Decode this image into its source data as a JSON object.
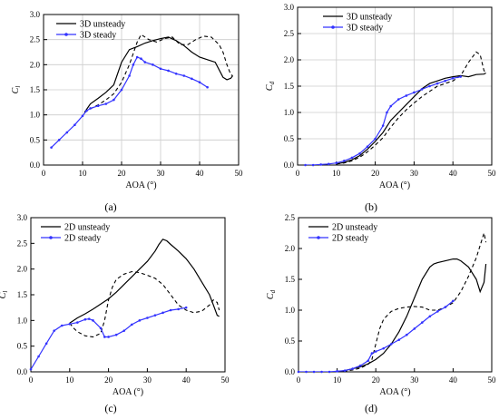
{
  "chart_data": [
    {
      "type": "line",
      "panel_label": "(a)",
      "ylabel": "C",
      "ylabel_sub": "l",
      "xlabel": "AOA (°)",
      "xlim": [
        0,
        50
      ],
      "ylim": [
        0,
        3.0
      ],
      "xticks": [
        "0",
        "10",
        "20",
        "30",
        "40",
        "50"
      ],
      "yticks": [
        "0.0",
        "0.5",
        "1.0",
        "1.5",
        "2.0",
        "2.5",
        "3.0"
      ],
      "grid": true,
      "legend_position": "top-left",
      "series": [
        {
          "name": "3D unsteady",
          "color": "#000000",
          "style": "solid",
          "marker": "none",
          "x": [
            10.5,
            12,
            14,
            16,
            18,
            20,
            22,
            24,
            26,
            28,
            30,
            32,
            34,
            36,
            38,
            40,
            42,
            44,
            46,
            47,
            48,
            48.5
          ],
          "y": [
            1.05,
            1.22,
            1.33,
            1.45,
            1.6,
            2.05,
            2.3,
            2.36,
            2.43,
            2.48,
            2.52,
            2.55,
            2.48,
            2.38,
            2.25,
            2.15,
            2.1,
            2.05,
            1.75,
            1.7,
            1.73,
            1.78
          ]
        },
        {
          "name": "",
          "color": "#000000",
          "style": "dashed",
          "marker": "none",
          "x": [
            10.5,
            12,
            14,
            16,
            18,
            20,
            22,
            24,
            25,
            27,
            29,
            31,
            33,
            35,
            37,
            39,
            41,
            43,
            45,
            46,
            47,
            48,
            48.5
          ],
          "y": [
            1.05,
            1.12,
            1.2,
            1.3,
            1.42,
            1.65,
            2.0,
            2.45,
            2.6,
            2.5,
            2.45,
            2.52,
            2.55,
            2.4,
            2.4,
            2.5,
            2.57,
            2.55,
            2.4,
            2.25,
            2.0,
            1.8,
            1.78
          ]
        },
        {
          "name": "3D steady",
          "color": "#3333ff",
          "style": "solid",
          "marker": "dot",
          "x": [
            2,
            4,
            6,
            8,
            10,
            11,
            12,
            14,
            16,
            18,
            20,
            22,
            23,
            24,
            25,
            26,
            28,
            30,
            32,
            34,
            36,
            38,
            40,
            42
          ],
          "y": [
            0.35,
            0.5,
            0.65,
            0.8,
            0.98,
            1.08,
            1.13,
            1.18,
            1.22,
            1.3,
            1.5,
            1.78,
            2.0,
            2.15,
            2.12,
            2.05,
            2.0,
            1.92,
            1.88,
            1.82,
            1.78,
            1.72,
            1.65,
            1.55
          ]
        }
      ]
    },
    {
      "type": "line",
      "panel_label": "(b)",
      "ylabel": "C",
      "ylabel_sub": "d",
      "xlabel": "AOA (°)",
      "xlim": [
        0,
        50
      ],
      "ylim": [
        0,
        3.0
      ],
      "xticks": [
        "0",
        "10",
        "20",
        "30",
        "40",
        "50"
      ],
      "yticks": [
        "0.0",
        "0.5",
        "1.0",
        "1.5",
        "2.0",
        "2.5",
        "3.0"
      ],
      "grid": true,
      "legend_position": "top-center",
      "series": [
        {
          "name": "3D unsteady",
          "color": "#000000",
          "style": "solid",
          "marker": "none",
          "x": [
            10,
            12,
            14,
            16,
            18,
            20,
            22,
            24,
            26,
            28,
            30,
            32,
            34,
            36,
            38,
            40,
            42,
            44,
            46,
            48,
            48.5
          ],
          "y": [
            0.02,
            0.05,
            0.1,
            0.18,
            0.3,
            0.45,
            0.62,
            0.85,
            1.0,
            1.15,
            1.3,
            1.45,
            1.55,
            1.6,
            1.65,
            1.68,
            1.7,
            1.68,
            1.72,
            1.73,
            1.75
          ]
        },
        {
          "name": "",
          "color": "#000000",
          "style": "dashed",
          "marker": "none",
          "x": [
            10,
            12,
            14,
            16,
            18,
            20,
            22,
            24,
            26,
            28,
            30,
            32,
            34,
            36,
            38,
            40,
            42,
            44,
            46,
            47,
            48,
            48.5
          ],
          "y": [
            0.02,
            0.04,
            0.08,
            0.15,
            0.25,
            0.38,
            0.52,
            0.72,
            0.9,
            1.05,
            1.18,
            1.3,
            1.4,
            1.5,
            1.55,
            1.6,
            1.7,
            1.95,
            2.15,
            2.1,
            1.8,
            1.75
          ]
        },
        {
          "name": "3D steady",
          "color": "#3333ff",
          "style": "solid",
          "marker": "dot",
          "x": [
            2,
            4,
            6,
            8,
            10,
            12,
            14,
            16,
            18,
            20,
            22,
            23,
            24,
            26,
            28,
            30,
            32,
            34,
            36,
            38,
            40,
            42
          ],
          "y": [
            0.0,
            0.0,
            0.01,
            0.02,
            0.04,
            0.08,
            0.14,
            0.22,
            0.35,
            0.5,
            0.75,
            1.0,
            1.12,
            1.25,
            1.32,
            1.38,
            1.44,
            1.5,
            1.55,
            1.6,
            1.65,
            1.68
          ]
        }
      ]
    },
    {
      "type": "line",
      "panel_label": "(c)",
      "ylabel": "C",
      "ylabel_sub": "l",
      "xlabel": "AOA (°)",
      "xlim": [
        0,
        50
      ],
      "ylim": [
        0,
        3.0
      ],
      "xticks": [
        "0",
        "10",
        "20",
        "30",
        "40",
        "50"
      ],
      "yticks": [
        "0.0",
        "0.5",
        "1.0",
        "1.5",
        "2.0",
        "2.5",
        "3.0"
      ],
      "grid": false,
      "legend_position": "top-left",
      "series": [
        {
          "name": "2D unsteady",
          "color": "#000000",
          "style": "solid",
          "marker": "none",
          "x": [
            10,
            12,
            14,
            16,
            18,
            20,
            22,
            24,
            26,
            28,
            30,
            32,
            33,
            34,
            35,
            36,
            38,
            40,
            42,
            44,
            46,
            47,
            48,
            48.5
          ],
          "y": [
            0.95,
            1.05,
            1.13,
            1.22,
            1.32,
            1.42,
            1.55,
            1.7,
            1.85,
            2.0,
            2.15,
            2.35,
            2.48,
            2.58,
            2.55,
            2.48,
            2.35,
            2.2,
            2.0,
            1.75,
            1.5,
            1.3,
            1.1,
            1.08
          ]
        },
        {
          "name": "",
          "color": "#000000",
          "style": "dashed",
          "marker": "none",
          "x": [
            10,
            11,
            12,
            14,
            16,
            18,
            19,
            20,
            21,
            22,
            24,
            26,
            28,
            30,
            32,
            34,
            36,
            38,
            40,
            42,
            44,
            46,
            47,
            48,
            48.5
          ],
          "y": [
            0.95,
            0.85,
            0.78,
            0.7,
            0.68,
            0.75,
            1.0,
            1.4,
            1.65,
            1.8,
            1.9,
            1.95,
            1.93,
            1.88,
            1.82,
            1.7,
            1.5,
            1.3,
            1.2,
            1.15,
            1.18,
            1.3,
            1.4,
            1.35,
            1.2
          ]
        },
        {
          "name": "2D steady",
          "color": "#3333ff",
          "style": "solid",
          "marker": "dot",
          "x": [
            0,
            2,
            4,
            6,
            8,
            10,
            12,
            14,
            15,
            16,
            18,
            19,
            20,
            22,
            24,
            26,
            28,
            30,
            32,
            34,
            36,
            38,
            40
          ],
          "y": [
            0.05,
            0.3,
            0.55,
            0.8,
            0.9,
            0.93,
            0.96,
            1.02,
            1.03,
            1.0,
            0.85,
            0.68,
            0.68,
            0.72,
            0.8,
            0.92,
            1.0,
            1.05,
            1.1,
            1.15,
            1.2,
            1.22,
            1.25
          ]
        }
      ]
    },
    {
      "type": "line",
      "panel_label": "(d)",
      "ylabel": "C",
      "ylabel_sub": "d",
      "xlabel": "AOA (°)",
      "xlim": [
        0,
        50
      ],
      "ylim": [
        0,
        2.5
      ],
      "xticks": [
        "0",
        "10",
        "20",
        "30",
        "40",
        "50"
      ],
      "yticks": [
        "0.0",
        "0.5",
        "1.0",
        "1.5",
        "2.0",
        "2.5"
      ],
      "grid": false,
      "legend_position": "top-left",
      "series": [
        {
          "name": "2D unsteady",
          "color": "#000000",
          "style": "solid",
          "marker": "none",
          "x": [
            10,
            12,
            14,
            16,
            18,
            20,
            22,
            24,
            26,
            28,
            30,
            32,
            34,
            35,
            36,
            38,
            40,
            41,
            42,
            44,
            46,
            47,
            48,
            48.5
          ],
          "y": [
            0.0,
            0.02,
            0.05,
            0.08,
            0.13,
            0.2,
            0.3,
            0.45,
            0.65,
            0.9,
            1.2,
            1.5,
            1.7,
            1.75,
            1.77,
            1.8,
            1.83,
            1.83,
            1.8,
            1.7,
            1.5,
            1.3,
            1.45,
            1.75
          ]
        },
        {
          "name": "",
          "color": "#000000",
          "style": "dashed",
          "marker": "none",
          "x": [
            10,
            12,
            14,
            16,
            18,
            19,
            20,
            21,
            22,
            24,
            26,
            28,
            30,
            32,
            34,
            36,
            38,
            40,
            42,
            44,
            46,
            47,
            48,
            48.5
          ],
          "y": [
            0.0,
            0.01,
            0.03,
            0.06,
            0.12,
            0.2,
            0.45,
            0.7,
            0.85,
            0.98,
            1.03,
            1.05,
            1.06,
            1.05,
            1.0,
            1.0,
            1.05,
            1.12,
            1.3,
            1.55,
            1.85,
            2.05,
            2.25,
            2.1
          ]
        },
        {
          "name": "2D steady",
          "color": "#3333ff",
          "style": "solid",
          "marker": "dot",
          "x": [
            0,
            2,
            4,
            6,
            8,
            10,
            12,
            14,
            16,
            18,
            19,
            20,
            22,
            24,
            26,
            28,
            30,
            32,
            34,
            36,
            38,
            40
          ],
          "y": [
            0.0,
            0.0,
            0.0,
            0.0,
            0.0,
            0.01,
            0.02,
            0.05,
            0.1,
            0.18,
            0.3,
            0.33,
            0.38,
            0.45,
            0.52,
            0.6,
            0.7,
            0.8,
            0.9,
            0.98,
            1.05,
            1.15
          ]
        }
      ]
    }
  ]
}
